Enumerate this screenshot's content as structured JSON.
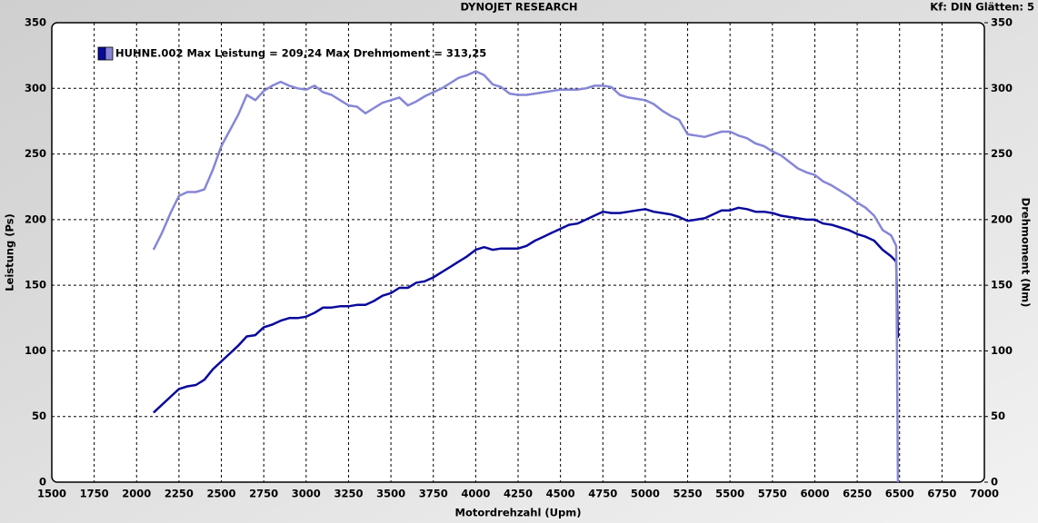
{
  "chart_data": {
    "type": "line",
    "title": "DYNOJET RESEARCH",
    "subtitle": "Kf: DIN  Glätten: 5",
    "xlabel": "Motordrehzahl (Upm)",
    "ylabel": "Leistung (Ps)",
    "y2label": "Drehmoment (Nm)",
    "legend": "HUHNE.002 Max Leistung = 209,24 Max Drehmoment = 313,25",
    "grid": true,
    "xlim": [
      1500,
      7000
    ],
    "xticks": [
      1500,
      1750,
      2000,
      2250,
      2500,
      2750,
      3000,
      3250,
      3500,
      3750,
      4000,
      4250,
      4500,
      4750,
      5000,
      5250,
      5500,
      5750,
      6000,
      6250,
      6500,
      6750,
      7000
    ],
    "ylim": [
      0,
      350
    ],
    "yticks": [
      0,
      50,
      100,
      150,
      200,
      250,
      300,
      350
    ],
    "y2lim": [
      0,
      350
    ],
    "y2ticks": [
      0,
      50,
      100,
      150,
      200,
      250,
      300,
      350
    ],
    "x": [
      2100,
      2150,
      2200,
      2250,
      2300,
      2350,
      2400,
      2450,
      2500,
      2550,
      2600,
      2650,
      2700,
      2750,
      2800,
      2850,
      2900,
      2950,
      3000,
      3050,
      3100,
      3150,
      3200,
      3250,
      3300,
      3350,
      3400,
      3450,
      3500,
      3550,
      3600,
      3650,
      3700,
      3750,
      3800,
      3850,
      3900,
      3950,
      4000,
      4050,
      4100,
      4150,
      4200,
      4250,
      4300,
      4350,
      4400,
      4450,
      4500,
      4550,
      4600,
      4650,
      4700,
      4750,
      4800,
      4850,
      4900,
      4950,
      5000,
      5050,
      5100,
      5150,
      5200,
      5250,
      5300,
      5350,
      5400,
      5450,
      5500,
      5550,
      5600,
      5650,
      5700,
      5750,
      5800,
      5850,
      5900,
      5950,
      6000,
      6050,
      6100,
      6150,
      6200,
      6250,
      6300,
      6350,
      6400,
      6450,
      6480,
      6490
    ],
    "series": [
      {
        "color": "#0a0a9c",
        "values": [
          53,
          59,
          65,
          71,
          73,
          74,
          78,
          86,
          92,
          98,
          104,
          111,
          112,
          118,
          120,
          123,
          125,
          125,
          126,
          129,
          133,
          133,
          134,
          134,
          135,
          135,
          138,
          142,
          144,
          148,
          148,
          152,
          153,
          156,
          160,
          164,
          168,
          172,
          177,
          179,
          177,
          178,
          178,
          178,
          180,
          184,
          187,
          190,
          193,
          196,
          197,
          200,
          203,
          206,
          205,
          205,
          206,
          207,
          208,
          206,
          205,
          204,
          202,
          199,
          200,
          201,
          204,
          207,
          207,
          209,
          208,
          206,
          206,
          205,
          203,
          202,
          201,
          200,
          200,
          197,
          196,
          194,
          192,
          189,
          187,
          184,
          177,
          172,
          168,
          110
        ]
      },
      {
        "color": "#8686d6",
        "axis": "y2",
        "values": [
          177,
          190,
          205,
          218,
          221,
          221,
          223,
          238,
          256,
          268,
          280,
          295,
          291,
          298,
          302,
          305,
          302,
          300,
          299,
          302,
          297,
          295,
          291,
          287,
          286,
          281,
          285,
          289,
          291,
          293,
          287,
          290,
          294,
          297,
          300,
          304,
          308,
          310,
          313,
          310,
          303,
          301,
          296,
          295,
          295,
          296,
          297,
          298,
          299,
          299,
          299,
          300,
          302,
          302,
          301,
          295,
          293,
          292,
          291,
          288,
          283,
          279,
          276,
          265,
          264,
          263,
          265,
          267,
          267,
          264,
          262,
          258,
          256,
          252,
          249,
          244,
          239,
          236,
          234,
          229,
          226,
          222,
          218,
          213,
          209,
          203,
          192,
          188,
          180,
          0
        ]
      }
    ]
  }
}
